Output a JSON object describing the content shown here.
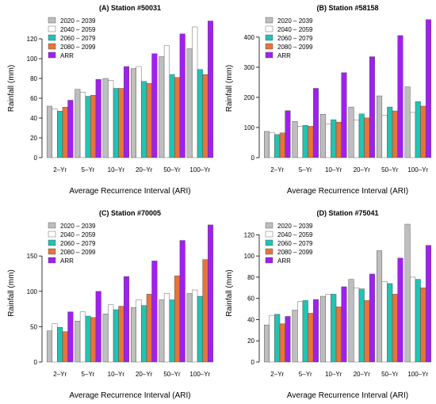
{
  "colors": {
    "2020-2039": "#bebebe",
    "2040-2059": "#ffffff",
    "2060-2079": "#20c4b4",
    "2080-2099": "#e8743a",
    "ARR": "#a020f0"
  },
  "chart_data": [
    {
      "type": "bar",
      "title": "(A) Station #50031",
      "xlabel": "Average Recurrence Interval (ARI)",
      "ylabel": "Rainfall (mm)",
      "categories": [
        "2–Yr",
        "5–Yr",
        "10–Yr",
        "20–Yr",
        "50–Yr",
        "100–Yr"
      ],
      "ylim": [
        0,
        140
      ],
      "yticks": [
        0,
        20,
        40,
        60,
        80,
        100,
        120
      ],
      "legend_position": "top-left",
      "grid": false,
      "series": [
        {
          "name": "2020 – 2039",
          "color_key": "2020-2039",
          "values": [
            52,
            69,
            80,
            90,
            102,
            110
          ]
        },
        {
          "name": "2040 – 2059",
          "color_key": "2040-2059",
          "values": [
            49,
            66,
            78,
            92,
            113,
            132
          ]
        },
        {
          "name": "2060 – 2079",
          "color_key": "2060-2079",
          "values": [
            47,
            62,
            70,
            77,
            84,
            89
          ]
        },
        {
          "name": "2080 – 2099",
          "color_key": "2080-2099",
          "values": [
            51,
            63,
            70,
            75,
            81,
            84
          ]
        },
        {
          "name": "ARR",
          "color_key": "ARR",
          "values": [
            58,
            79,
            92,
            105,
            125,
            138
          ]
        }
      ]
    },
    {
      "type": "bar",
      "title": "(B) Station #58158",
      "xlabel": "Average Recurrence Interval (ARI)",
      "ylabel": "Rainfall (mm)",
      "categories": [
        "2–Yr",
        "5–Yr",
        "10–Yr",
        "20–Yr",
        "50–Yr",
        "100–Yr"
      ],
      "ylim": [
        0,
        460
      ],
      "yticks": [
        0,
        100,
        200,
        300,
        400
      ],
      "legend_position": "top-left",
      "grid": false,
      "series": [
        {
          "name": "2020 – 2039",
          "color_key": "2020-2039",
          "values": [
            87,
            120,
            144,
            168,
            205,
            235
          ]
        },
        {
          "name": "2040 – 2059",
          "color_key": "2040-2059",
          "values": [
            82,
            103,
            112,
            125,
            140,
            150
          ]
        },
        {
          "name": "2060 – 2079",
          "color_key": "2060-2079",
          "values": [
            77,
            107,
            126,
            145,
            168,
            186
          ]
        },
        {
          "name": "2080 – 2099",
          "color_key": "2080-2099",
          "values": [
            82,
            104,
            118,
            132,
            155,
            171
          ]
        },
        {
          "name": "ARR",
          "color_key": "ARR",
          "values": [
            156,
            230,
            282,
            335,
            405,
            458
          ]
        }
      ]
    },
    {
      "type": "bar",
      "title": "(C) Station #70005",
      "xlabel": "Average Recurrence Interval (ARI)",
      "ylabel": "Rainfall (mm)",
      "categories": [
        "2–Yr",
        "5–Yr",
        "10–Yr",
        "20–Yr",
        "50–Yr",
        "100–Yr"
      ],
      "ylim": [
        0,
        195
      ],
      "yticks": [
        0,
        50,
        100,
        150
      ],
      "legend_position": "top-left",
      "grid": false,
      "series": [
        {
          "name": "2020 – 2039",
          "color_key": "2020-2039",
          "values": [
            44,
            58,
            68,
            77,
            88,
            97
          ]
        },
        {
          "name": "2040 – 2059",
          "color_key": "2040-2059",
          "values": [
            54,
            71,
            81,
            88,
            97,
            102
          ]
        },
        {
          "name": "2060 – 2079",
          "color_key": "2060-2079",
          "values": [
            49,
            65,
            74,
            80,
            88,
            93
          ]
        },
        {
          "name": "2080 – 2099",
          "color_key": "2080-2099",
          "values": [
            43,
            63,
            79,
            96,
            122,
            145
          ]
        },
        {
          "name": "ARR",
          "color_key": "ARR",
          "values": [
            71,
            100,
            121,
            143,
            172,
            194
          ]
        }
      ]
    },
    {
      "type": "bar",
      "title": "(D) Station #75041",
      "xlabel": "Average Recurrence Interval (ARI)",
      "ylabel": "Rainfall (mm)",
      "categories": [
        "2–Yr",
        "5–Yr",
        "10–Yr",
        "20–Yr",
        "50–Yr",
        "100–Yr"
      ],
      "ylim": [
        0,
        130
      ],
      "yticks": [
        0,
        20,
        40,
        60,
        80,
        100,
        120
      ],
      "legend_position": "top-left",
      "grid": false,
      "series": [
        {
          "name": "2020 – 2039",
          "color_key": "2020-2039",
          "values": [
            35,
            49,
            62,
            78,
            105,
            130
          ]
        },
        {
          "name": "2040 – 2059",
          "color_key": "2040-2059",
          "values": [
            44,
            57,
            64,
            70,
            76,
            80
          ]
        },
        {
          "name": "2060 – 2079",
          "color_key": "2060-2079",
          "values": [
            45,
            58,
            64,
            69,
            74,
            78
          ]
        },
        {
          "name": "2080 – 2099",
          "color_key": "2080-2099",
          "values": [
            36,
            46,
            52,
            58,
            64,
            70
          ]
        },
        {
          "name": "ARR",
          "color_key": "ARR",
          "values": [
            43,
            59,
            71,
            83,
            98,
            110
          ]
        }
      ]
    }
  ]
}
